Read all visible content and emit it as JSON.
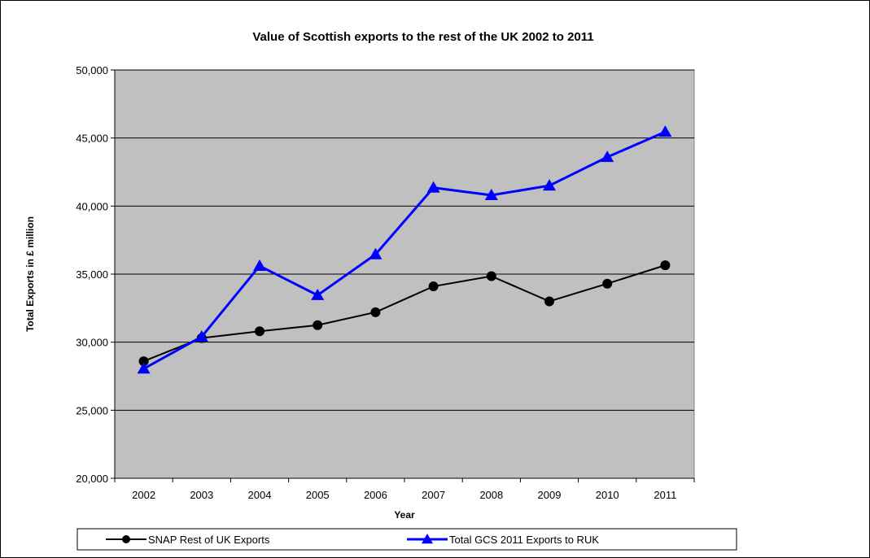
{
  "chart_data": {
    "type": "line",
    "title": "Value of Scottish exports to the rest of the UK 2002 to 2011",
    "xlabel": "Year",
    "ylabel": "Total Exports in £ million",
    "categories": [
      "2002",
      "2003",
      "2004",
      "2005",
      "2006",
      "2007",
      "2008",
      "2009",
      "2010",
      "2011"
    ],
    "ylim": [
      20000,
      50000
    ],
    "yticks": [
      "20,000",
      "25,000",
      "30,000",
      "35,000",
      "40,000",
      "45,000",
      "50,000"
    ],
    "ytick_values": [
      20000,
      25000,
      30000,
      35000,
      40000,
      45000,
      50000
    ],
    "grid": true,
    "legend_position": "bottom",
    "series": [
      {
        "name": "SNAP Rest of UK Exports",
        "color": "#000000",
        "marker": "circle",
        "values": [
          28600,
          30300,
          30800,
          31250,
          32200,
          34100,
          34850,
          33000,
          34300,
          35650
        ]
      },
      {
        "name": "Total GCS 2011 Exports to RUK",
        "color": "#0000ff",
        "marker": "triangle",
        "values": [
          28050,
          30400,
          35600,
          33450,
          36450,
          41350,
          40800,
          41500,
          43600,
          45450
        ]
      }
    ],
    "colors": {
      "plot_background": "#c0c0c0",
      "gridline": "#000000"
    }
  }
}
